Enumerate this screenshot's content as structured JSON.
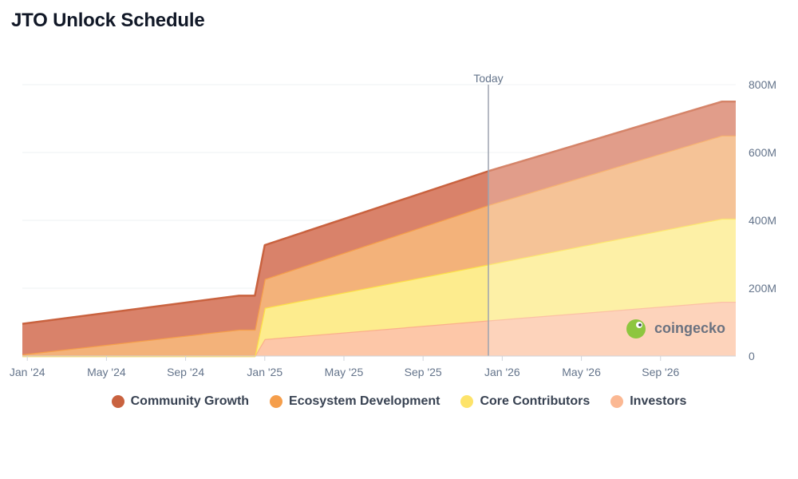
{
  "chart_data": {
    "type": "area",
    "stacked": true,
    "title": "JTO Unlock Schedule",
    "x_tick_labels": [
      "Jan '24",
      "May '24",
      "Sep '24",
      "Jan '25",
      "May '25",
      "Sep '25",
      "Jan '26",
      "May '26",
      "Sep '26"
    ],
    "x_ticks_month_index": [
      0,
      4,
      8,
      12,
      16,
      20,
      24,
      28,
      32
    ],
    "y_tick_labels": [
      "0",
      "200M",
      "400M",
      "600M",
      "800M"
    ],
    "y_ticks": [
      0,
      200,
      400,
      600,
      800
    ],
    "ylim": [
      0,
      800
    ],
    "xlim_month_index": [
      -0.25,
      35.8
    ],
    "units": "million JTO",
    "today_label": "Today",
    "today_month_index": 23.3,
    "watermark": "coingecko",
    "x_month_index": [
      -0.25,
      10.7,
      11.5,
      12.0,
      23.3,
      35.1,
      35.8
    ],
    "series": [
      {
        "name": "Investors",
        "color": "#fdc7a8",
        "values": [
          0,
          0,
          0,
          50,
          105,
          160,
          160
        ]
      },
      {
        "name": "Core Contributors",
        "color": "#fdec8e",
        "values": [
          0,
          0,
          0,
          92,
          165,
          245,
          245
        ]
      },
      {
        "name": "Ecosystem Development",
        "color": "#f3b27a",
        "values": [
          5,
          78,
          78,
          85,
          175,
          245,
          245
        ]
      },
      {
        "name": "Community Growth",
        "color": "#d9826a",
        "values": [
          90,
          100,
          100,
          100,
          100,
          100,
          100
        ]
      }
    ],
    "series_edge_colors": [
      "#fbb08c",
      "#fde047",
      "#f59e4b",
      "#c9623f"
    ],
    "legend": [
      {
        "name": "Community Growth",
        "color": "#c9623f"
      },
      {
        "name": "Ecosystem Development",
        "color": "#f59e4b"
      },
      {
        "name": "Core Contributors",
        "color": "#fde36a"
      },
      {
        "name": "Investors",
        "color": "#fbb893"
      }
    ]
  }
}
